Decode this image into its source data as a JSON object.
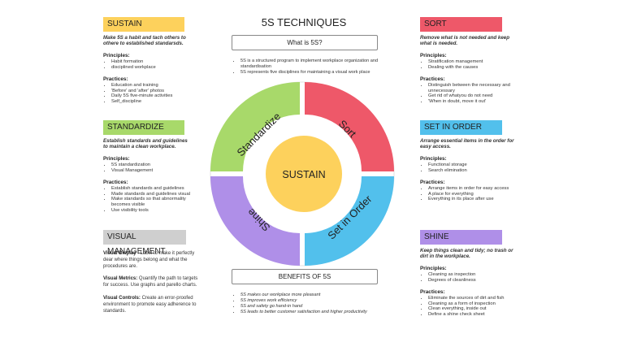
{
  "title": "5S TECHNIQUES",
  "what": {
    "header": "What is 5S?",
    "items": [
      "5S is a structured program to implement workplace organization and standardisation",
      "5S represents five disciplines for maintaining a visual work place"
    ]
  },
  "benefits": {
    "header": "BENEFITS OF 5S",
    "items": [
      "5S makes our workplace more pleasant",
      "5S improves work efficiency",
      "5S and safety go hand-in hand",
      "5S leads to better customer satisfaction and higher productivity"
    ]
  },
  "wheel": {
    "center": "SUSTAIN",
    "segments": [
      "Sort",
      "Set in Order",
      "Shine",
      "Standardize"
    ]
  },
  "colors": {
    "sustain": "#FDD15C",
    "sort": "#EE5869",
    "set_in_order": "#52C0EC",
    "shine": "#AF8FE8",
    "standardize": "#A8D96A",
    "visual_management": "#CFCFCF"
  },
  "sustain": {
    "header": "SUSTAIN",
    "subtitle": "Make 5S a habit and tach others to othere to established standarsds.",
    "principles_label": "Principles:",
    "principles": [
      "Habit formation",
      "disciplined workplace"
    ],
    "practices_label": "Practices:",
    "practices": [
      "Education and training",
      "'Before' and 'after' photos",
      "Daily 5S five-minute activities",
      "Self_discipline"
    ]
  },
  "standardize": {
    "header": "STANDARDIZE",
    "subtitle": "Establish standards and guidelines to maintain a clean workplace.",
    "principles_label": "Principles:",
    "principles": [
      "5S standardization",
      "Visual Management"
    ],
    "practices_label": "Practices:",
    "practices": [
      "Establish standards and guidelines",
      "Made standards and guidelines visual",
      "Make standards so that abnormality becomes visible",
      "Use visibility tools"
    ]
  },
  "visual_management": {
    "header": "VISUAL MANAGEMENT",
    "items": [
      {
        "label": "Visual Display",
        "text": " : Label to make it perfectly dear where things belong and what the procedures are."
      },
      {
        "label": "Visual Metrics:",
        "text": " Quantify the path to targets for success. Use graphs and parello charts."
      },
      {
        "label": "Visual Controls:",
        "text": " Create an error-proofed environment to promote easy adherence to standards."
      }
    ]
  },
  "sort": {
    "header": "SORT",
    "subtitle": "Remove what is not needed and keep what is needed.",
    "principles_label": "Principles:",
    "principles": [
      "Stratification management",
      "Dealing with the causes"
    ],
    "practices_label": "Practices:",
    "practices": [
      "Distinguish between the necessary and unnecessary",
      "Get rid of whatyou do not need",
      "'When in doubt, move it out'"
    ]
  },
  "set_in_order": {
    "header": "SET IN ORDER",
    "subtitle": "Arrange essential items in the order for easy access.",
    "principles_label": "Principles:",
    "principles": [
      "Functional storage",
      "Search elimination"
    ],
    "practices_label": "Practices:",
    "practices": [
      "Arrange items in order for easy access",
      "A place for everything",
      "Everything in its place after use"
    ]
  },
  "shine": {
    "header": "SHINE",
    "subtitle": "Keep things clean and tidy; no trash or dirt in the workplace.",
    "principles_label": "Principles:",
    "principles": [
      "Cleaning as inspection",
      "Degrees of cleanliness"
    ],
    "practices_label": "Practices:",
    "practices": [
      "Eliminate the sources of dirt and fish",
      "Cleaning as a form of inspection",
      "Clean everything, inside out",
      "Define a shine check sheet"
    ]
  }
}
